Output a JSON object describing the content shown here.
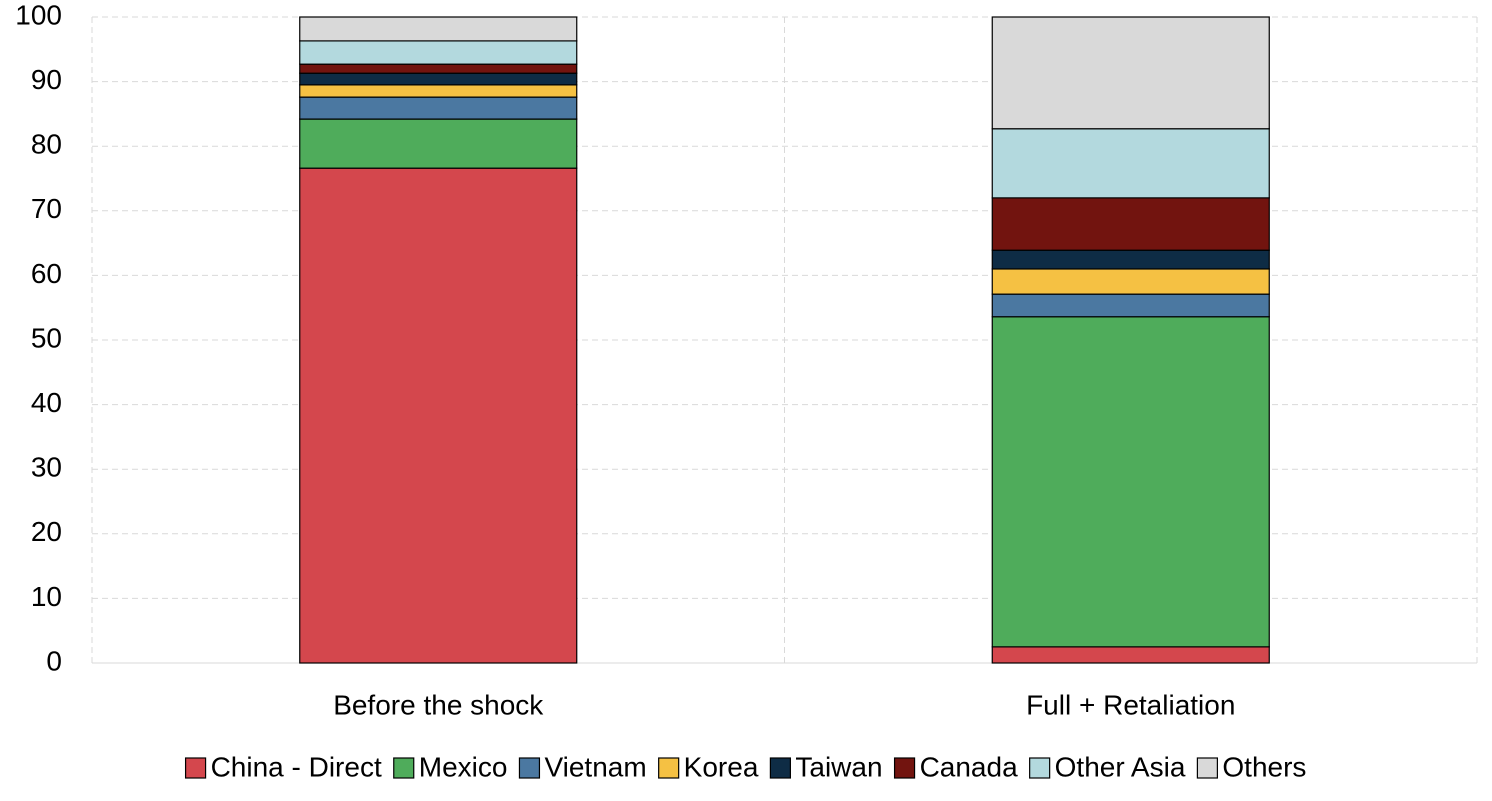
{
  "chart_data": {
    "type": "stacked_bar",
    "categories": [
      "Before the shock",
      "Full + Retaliation"
    ],
    "series": [
      {
        "name": "China - Direct",
        "color": "#d4474d",
        "values": [
          76.6,
          2.5
        ]
      },
      {
        "name": "Mexico",
        "color": "#4fac5b",
        "values": [
          7.6,
          51.1
        ]
      },
      {
        "name": "Vietnam",
        "color": "#4b78a1",
        "values": [
          3.4,
          3.5
        ]
      },
      {
        "name": "Korea",
        "color": "#f5c143",
        "values": [
          1.9,
          3.9
        ]
      },
      {
        "name": "Taiwan",
        "color": "#0e2c45",
        "values": [
          1.8,
          2.9
        ]
      },
      {
        "name": "Canada",
        "color": "#72140f",
        "values": [
          1.4,
          8.1
        ]
      },
      {
        "name": "Other Asia",
        "color": "#b3d9de",
        "values": [
          3.6,
          10.7
        ]
      },
      {
        "name": "Others",
        "color": "#d9d9d9",
        "values": [
          3.7,
          17.3
        ]
      }
    ],
    "ylim": [
      0,
      100
    ],
    "yticks": [
      0,
      10,
      20,
      30,
      40,
      50,
      60,
      70,
      80,
      90,
      100
    ],
    "grid": true
  }
}
